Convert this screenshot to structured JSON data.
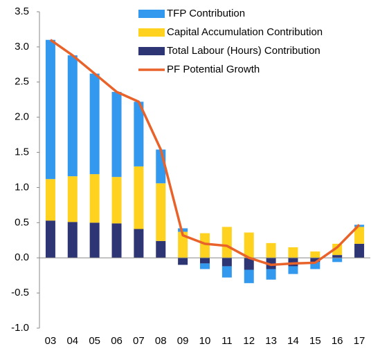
{
  "chart_data": {
    "type": "bar",
    "stacked": true,
    "categories": [
      "03",
      "04",
      "05",
      "06",
      "07",
      "08",
      "09",
      "10",
      "11",
      "12",
      "13",
      "14",
      "15",
      "16",
      "17"
    ],
    "series": [
      {
        "name": "TFP Contribution",
        "color": "#3399ee",
        "values": [
          1.98,
          1.72,
          1.43,
          1.21,
          0.92,
          0.48,
          0.05,
          -0.08,
          -0.16,
          -0.19,
          -0.15,
          -0.11,
          -0.1,
          -0.06,
          0.03
        ]
      },
      {
        "name": "Capital Accumulation Contribution",
        "color": "#ffd21f",
        "values": [
          0.59,
          0.65,
          0.69,
          0.66,
          0.89,
          0.82,
          0.37,
          0.35,
          0.44,
          0.36,
          0.21,
          0.15,
          0.09,
          0.16,
          0.24
        ]
      },
      {
        "name": "Total Labour (Hours) Contribution",
        "color": "#2e3575",
        "values": [
          0.53,
          0.51,
          0.5,
          0.49,
          0.41,
          0.24,
          -0.1,
          -0.08,
          -0.12,
          -0.17,
          -0.16,
          -0.12,
          -0.06,
          0.04,
          0.2
        ]
      },
      {
        "name": "PF Potential Growth",
        "color": "#e8622a",
        "type": "line",
        "values": [
          3.1,
          2.88,
          2.62,
          2.36,
          2.22,
          1.54,
          0.32,
          0.2,
          0.17,
          0.0,
          -0.1,
          -0.08,
          -0.07,
          0.15,
          0.47
        ]
      }
    ],
    "ylim": [
      -1.0,
      3.5
    ],
    "yticks": [
      {
        "value": -1.0,
        "label": "-1.0"
      },
      {
        "value": -0.5,
        "label": "-0.5"
      },
      {
        "value": 0,
        "label": "0.0"
      },
      0.5,
      {
        "value": 1.0,
        "label": "1.0"
      },
      1.5,
      {
        "value": 2.0,
        "label": "2.0"
      },
      2.5,
      {
        "value": 3.0,
        "label": "3.0"
      },
      3.5
    ],
    "grid": false
  }
}
